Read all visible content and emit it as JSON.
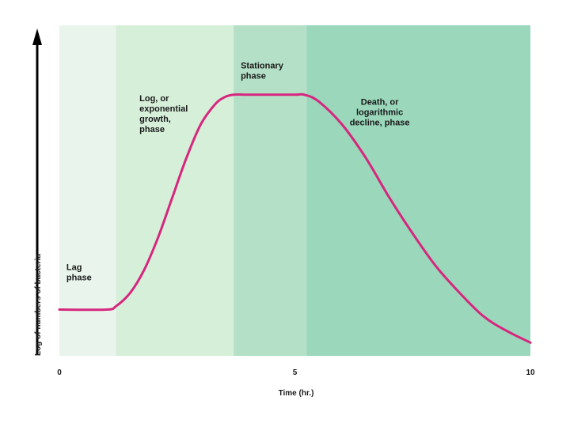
{
  "chart_data": {
    "type": "line",
    "title": "",
    "xlabel": "Time (hr.)",
    "ylabel": "Log of numbers of bacteria",
    "xlim": [
      0,
      10
    ],
    "ylim": [
      0,
      10
    ],
    "x_ticks": [
      "0",
      "5",
      "10"
    ],
    "phases": [
      {
        "label": "Lag phase",
        "lines": [
          "Lag",
          "phase"
        ],
        "x_start": 0,
        "x_end": 1.2,
        "color": "#e9f5ec"
      },
      {
        "label": "Log, or exponential growth, phase",
        "lines": [
          "Log, or",
          "exponential",
          "growth,",
          "phase"
        ],
        "x_start": 1.2,
        "x_end": 3.7,
        "color": "#d6efd9"
      },
      {
        "label": "Stationary phase",
        "lines": [
          "Stationary",
          "phase"
        ],
        "x_start": 3.7,
        "x_end": 5.25,
        "color": "#b3e0c6"
      },
      {
        "label": "Death, or logarithmic decline, phase",
        "lines": [
          "Death, or",
          "logarithmic",
          "decline, phase"
        ],
        "x_start": 5.25,
        "x_end": 10,
        "color": "#9ad7bb"
      }
    ],
    "series": [
      {
        "line_color": "#d6267e",
        "x": [
          0,
          1.0,
          1.2,
          1.5,
          1.8,
          2.1,
          2.4,
          2.7,
          3.0,
          3.3,
          3.5,
          3.7,
          4.0,
          4.5,
          5.0,
          5.2,
          5.5,
          6.0,
          6.5,
          7.0,
          7.5,
          8.0,
          8.5,
          9.0,
          9.5,
          10.0
        ],
        "y": [
          1.4,
          1.4,
          1.5,
          1.9,
          2.6,
          3.6,
          4.8,
          6.0,
          7.0,
          7.6,
          7.82,
          7.9,
          7.9,
          7.9,
          7.9,
          7.9,
          7.7,
          7.0,
          6.0,
          4.8,
          3.7,
          2.7,
          1.9,
          1.2,
          0.75,
          0.4
        ]
      }
    ]
  }
}
